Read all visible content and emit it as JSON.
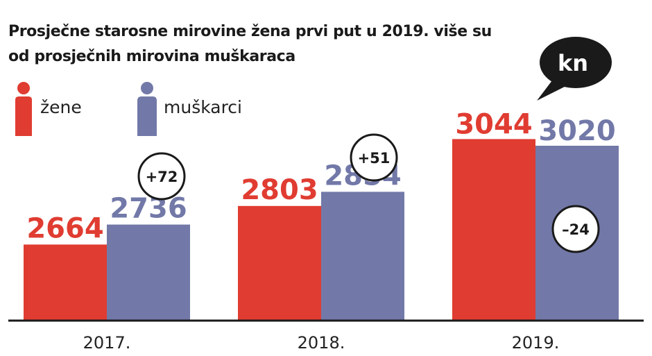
{
  "title": "Prosječne starosne mirovine žena prvi put u 2019. više su od prosječnih mirovina muškaraca",
  "legend": {
    "women_label": "žene",
    "men_label": "muškarci"
  },
  "currency": "kn",
  "colors": {
    "women": "#e03c31",
    "men": "#7279a8",
    "text": "#1a1a1a"
  },
  "chart_data": {
    "type": "bar",
    "title": "Prosječne starosne mirovine žena prvi put u 2019. više su od prosječnih mirovina muškaraca",
    "unit": "kn",
    "categories": [
      "2017.",
      "2018.",
      "2019."
    ],
    "series": [
      {
        "name": "žene",
        "values": [
          2664,
          2803,
          3044
        ]
      },
      {
        "name": "muškarci",
        "values": [
          2736,
          2854,
          3020
        ]
      }
    ],
    "differences": [
      "+72",
      "+51",
      "–24"
    ],
    "ylim": [
      2390,
      3110
    ],
    "legend_position": "top-left",
    "grid": false
  }
}
